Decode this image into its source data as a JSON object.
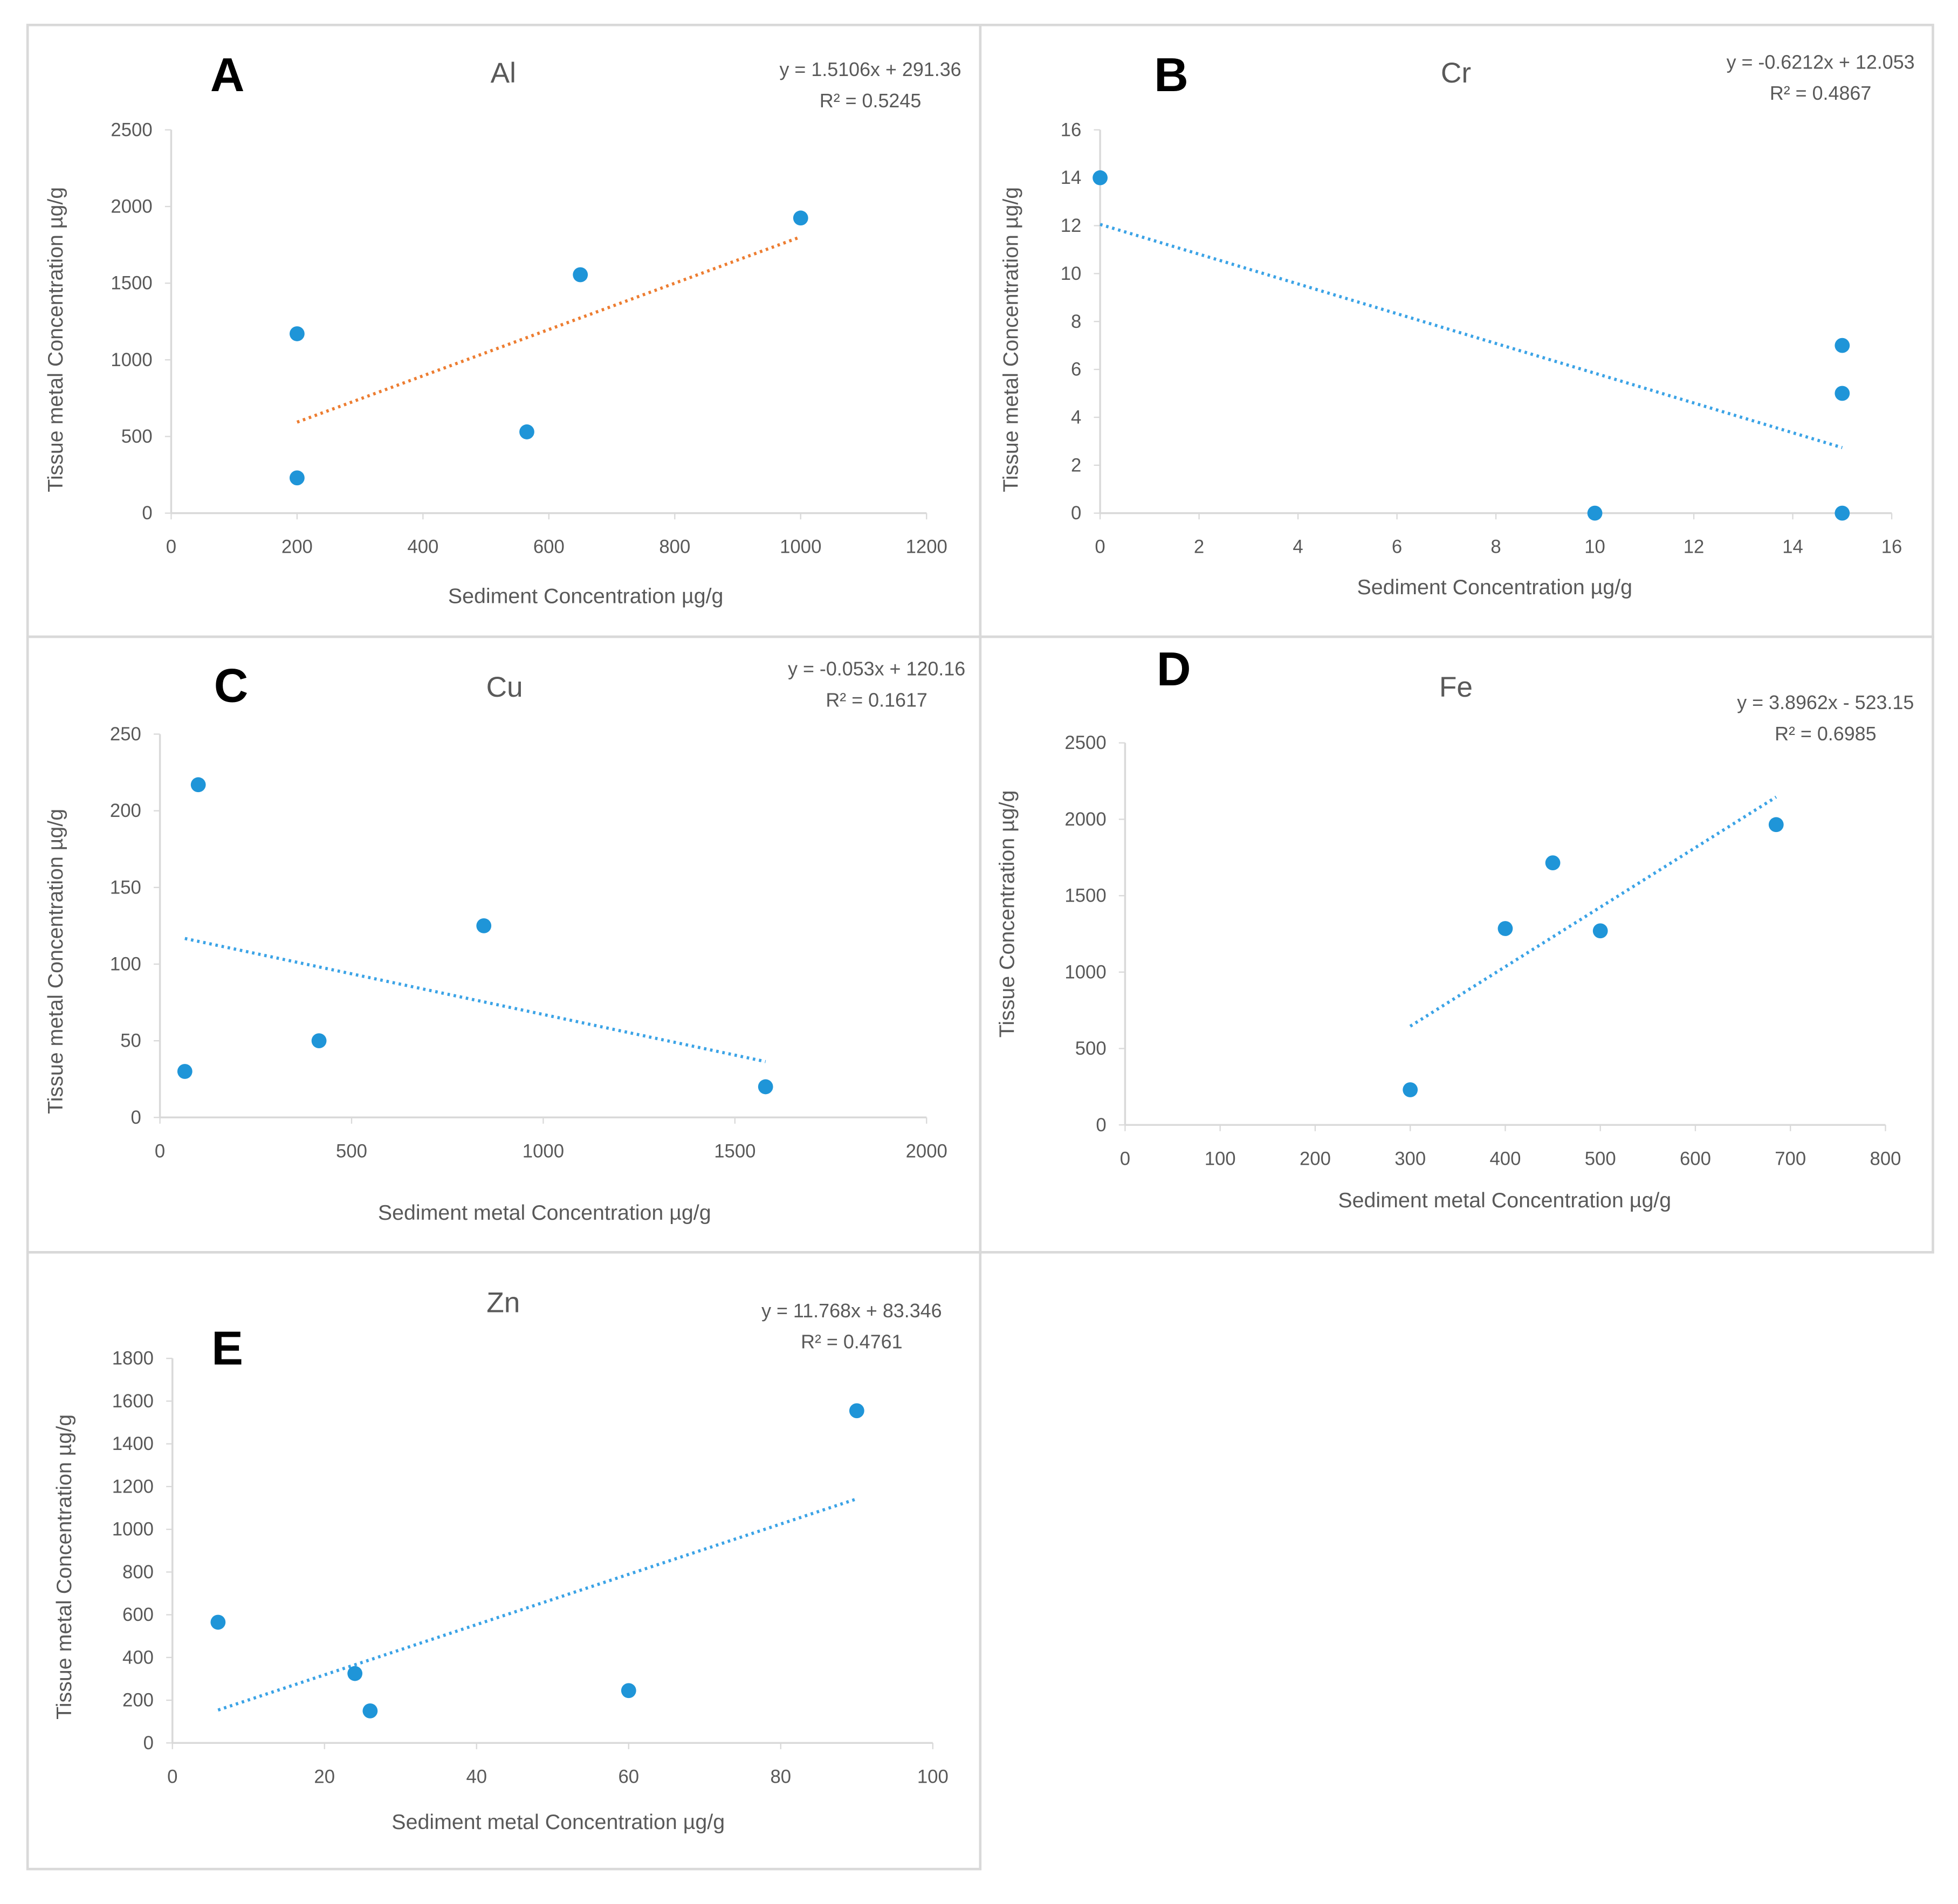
{
  "chart_data": [
    {
      "panel": "A",
      "type": "scatter",
      "title": "Al",
      "xlabel": "Sediment Concentration µg/g",
      "ylabel": "Tissue metal Concentration µg/g",
      "xlim": [
        0,
        1200
      ],
      "xticks": [
        0,
        200,
        400,
        600,
        800,
        1000,
        1200
      ],
      "ylim": [
        0,
        2500
      ],
      "yticks": [
        0,
        500,
        1000,
        1500,
        2000,
        2500
      ],
      "points": [
        [
          200,
          230
        ],
        [
          200,
          1170
        ],
        [
          565,
          530
        ],
        [
          650,
          1555
        ],
        [
          1000,
          1925
        ]
      ],
      "trendline": {
        "slope": 1.5106,
        "intercept": 291.36,
        "x_range": [
          200,
          1000
        ],
        "color": "#ED7D31"
      },
      "equation": "y = 1.5106x + 291.36",
      "r2": "R² = 0.5245"
    },
    {
      "panel": "B",
      "type": "scatter",
      "title": "Cr",
      "xlabel": "Sediment Concentration µg/g",
      "ylabel": "Tissue metal Concentration µg/g",
      "xlim": [
        0,
        16
      ],
      "xticks": [
        0,
        2,
        4,
        6,
        8,
        10,
        12,
        14,
        16
      ],
      "ylim": [
        0,
        16
      ],
      "yticks": [
        0,
        2,
        4,
        6,
        8,
        10,
        12,
        14,
        16
      ],
      "points": [
        [
          0,
          14
        ],
        [
          10,
          0
        ],
        [
          15,
          7
        ],
        [
          15,
          5
        ],
        [
          15,
          0
        ]
      ],
      "trendline": {
        "slope": -0.6212,
        "intercept": 12.053,
        "x_range": [
          0,
          15
        ],
        "color": "#3BA3E6"
      },
      "equation": "y = -0.6212x + 12.053",
      "r2": "R² = 0.4867"
    },
    {
      "panel": "C",
      "type": "scatter",
      "title": "Cu",
      "xlabel": "Sediment metal Concentration µg/g",
      "ylabel": "Tissue metal Concentration µg/g",
      "xlim": [
        0,
        2000
      ],
      "xticks": [
        0,
        500,
        1000,
        1500,
        2000
      ],
      "ylim": [
        0,
        250
      ],
      "yticks": [
        0,
        50,
        100,
        150,
        200,
        250
      ],
      "points": [
        [
          65,
          30
        ],
        [
          100,
          217
        ],
        [
          415,
          50
        ],
        [
          845,
          125
        ],
        [
          1580,
          20
        ]
      ],
      "trendline": {
        "slope": -0.053,
        "intercept": 120.16,
        "x_range": [
          65,
          1580
        ],
        "color": "#3BA3E6"
      },
      "equation": "y = -0.053x + 120.16",
      "r2": "R² = 0.1617"
    },
    {
      "panel": "D",
      "type": "scatter",
      "title": "Fe",
      "xlabel": "Sediment metal Concentration µg/g",
      "ylabel": "Tissue Concentration µg/g",
      "xlim": [
        0,
        800
      ],
      "xticks": [
        0,
        100,
        200,
        300,
        400,
        500,
        600,
        700,
        800
      ],
      "ylim": [
        0,
        2500
      ],
      "yticks": [
        0,
        500,
        1000,
        1500,
        2000,
        2500
      ],
      "points": [
        [
          300,
          230
        ],
        [
          400,
          1285
        ],
        [
          450,
          1715
        ],
        [
          500,
          1270
        ],
        [
          685,
          1965
        ]
      ],
      "trendline": {
        "slope": 3.8962,
        "intercept": -523.15,
        "x_range": [
          300,
          685
        ],
        "color": "#3BA3E6"
      },
      "equation": "y = 3.8962x - 523.15",
      "r2": "R² = 0.6985"
    },
    {
      "panel": "E",
      "type": "scatter",
      "title": "Zn",
      "xlabel": "Sediment metal Concentration µg/g",
      "ylabel": "Tissue metal Concentration µg/g",
      "xlim": [
        0,
        100
      ],
      "xticks": [
        0,
        20,
        40,
        60,
        80,
        100
      ],
      "ylim": [
        0,
        1800
      ],
      "yticks": [
        0,
        200,
        400,
        600,
        800,
        1000,
        1200,
        1400,
        1600,
        1800
      ],
      "points": [
        [
          6,
          565
        ],
        [
          24,
          325
        ],
        [
          26,
          150
        ],
        [
          60,
          245
        ],
        [
          90,
          1555
        ]
      ],
      "trendline": {
        "slope": 11.768,
        "intercept": 83.346,
        "x_range": [
          6,
          90
        ],
        "color": "#3BA3E6"
      },
      "equation": "y = 11.768x + 83.346",
      "r2": "R² = 0.4761"
    }
  ],
  "colors": {
    "points": "#1F95D8",
    "axis": "#D9D9D9",
    "border": "#D9D9D9"
  }
}
